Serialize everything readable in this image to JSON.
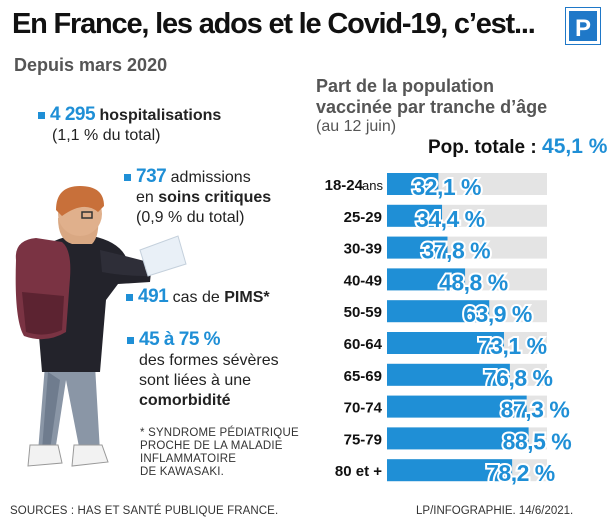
{
  "header": {
    "title": "En France, les ados et le Covid-19, c’est...",
    "logo_letter": "P",
    "subtitle": "Depuis mars 2020"
  },
  "stats": {
    "hosp": {
      "number": "4 295",
      "label": "hospitalisations",
      "detail": "(1,1 % du total)"
    },
    "crit": {
      "number": "737",
      "label_a": "admissions",
      "label_b_pre": "en ",
      "label_b_bold": "soins critiques",
      "detail": "(0,9 % du total)"
    },
    "pims": {
      "number": "491",
      "label_pre": "cas de ",
      "label_bold": "PIMS*"
    },
    "comorb": {
      "number": "45 à 75 %",
      "line1": "des formes sévères",
      "line2": "sont liées à une",
      "line3": "comorbidité"
    }
  },
  "footnote": [
    "* SYNDROME PÉDIATRIQUE",
    "PROCHE DE LA MALADIE",
    "INFLAMMATOIRE",
    "DE KAWASAKI."
  ],
  "sources": "SOURCES : HAS ET SANTÉ PUBLIQUE FRANCE.",
  "credit": "LP/INFOGRAPHIE. 14/6/2021.",
  "chart_data": {
    "type": "bar",
    "orientation": "horizontal",
    "title": "Part de la population vaccinée par tranche d’âge",
    "title_line1": "Part de la population",
    "title_line2": "vaccinée par tranche d’âge",
    "date": "(au 12 juin)",
    "total_label": "Pop. totale :",
    "total_value": "45,1 %",
    "categories": [
      "18-24",
      "25-29",
      "30-39",
      "40-49",
      "50-59",
      "60-64",
      "65-69",
      "70-74",
      "75-79",
      "80 et +"
    ],
    "first_category_suffix": "ans",
    "values": [
      32.1,
      34.4,
      37.8,
      48.8,
      63.9,
      73.1,
      76.8,
      87.3,
      88.5,
      78.2
    ],
    "value_labels": [
      "32,1 %",
      "34,4 %",
      "37,8 %",
      "48,8 %",
      "63,9 %",
      "73,1 %",
      "76,8 %",
      "87,3 %",
      "88,5 %",
      "78,2 %"
    ],
    "xlim": [
      0,
      100
    ],
    "bar_color": "#1f8fd6",
    "track_color": "#e4e4e4"
  }
}
